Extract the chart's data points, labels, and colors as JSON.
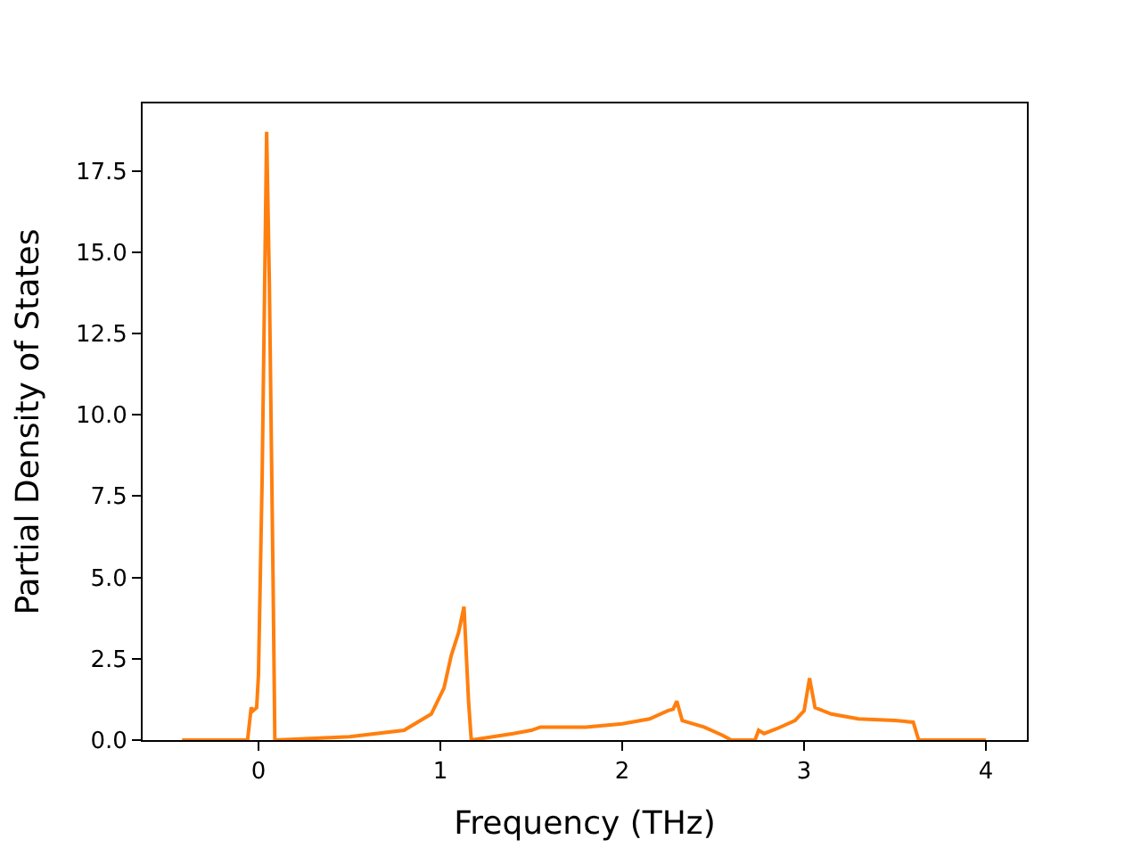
{
  "chart_data": {
    "type": "line",
    "xlabel": "Frequency (THz)",
    "ylabel": "Partial Density of States",
    "xlim": [
      -0.637,
      4.225
    ],
    "xticks": [
      0,
      1,
      2,
      3,
      4
    ],
    "ylim": [
      0,
      19.57
    ],
    "yticks": [
      {
        "value": 0,
        "label": "0.0"
      },
      {
        "value": 2.5,
        "label": "2.5"
      },
      {
        "value": 5,
        "label": "5.0"
      },
      {
        "value": 7.5,
        "label": "7.5"
      },
      {
        "value": 10,
        "label": "10.0"
      },
      {
        "value": 12.5,
        "label": "12.5"
      },
      {
        "value": 15,
        "label": "15.0"
      },
      {
        "value": 17.5,
        "label": "17.5"
      }
    ],
    "marker": "none",
    "line_style": "solid",
    "series": [
      {
        "color": "#ff7f0e",
        "x": [
          -0.42,
          -0.06,
          -0.04,
          -0.03,
          -0.01,
          0.0,
          0.02,
          0.045,
          0.06,
          0.08,
          0.09,
          0.5,
          0.8,
          0.95,
          1.02,
          1.06,
          1.1,
          1.13,
          1.155,
          1.17,
          1.4,
          1.5,
          1.55,
          1.8,
          2.0,
          2.15,
          2.25,
          2.28,
          2.3,
          2.33,
          2.45,
          2.55,
          2.6,
          2.73,
          2.75,
          2.78,
          2.85,
          2.95,
          3.0,
          3.03,
          3.06,
          3.15,
          3.3,
          3.5,
          3.6,
          3.63,
          4.0
        ],
        "values": [
          0,
          0,
          1.0,
          0.9,
          1.0,
          2.0,
          8,
          18.7,
          14,
          5,
          0,
          0.1,
          0.3,
          0.8,
          1.6,
          2.6,
          3.3,
          4.1,
          1.2,
          0,
          0.2,
          0.3,
          0.4,
          0.4,
          0.5,
          0.65,
          0.9,
          0.95,
          1.2,
          0.6,
          0.4,
          0.15,
          0,
          0,
          0.3,
          0.2,
          0.35,
          0.6,
          0.9,
          1.9,
          1.0,
          0.8,
          0.65,
          0.6,
          0.55,
          0,
          0
        ]
      }
    ]
  }
}
